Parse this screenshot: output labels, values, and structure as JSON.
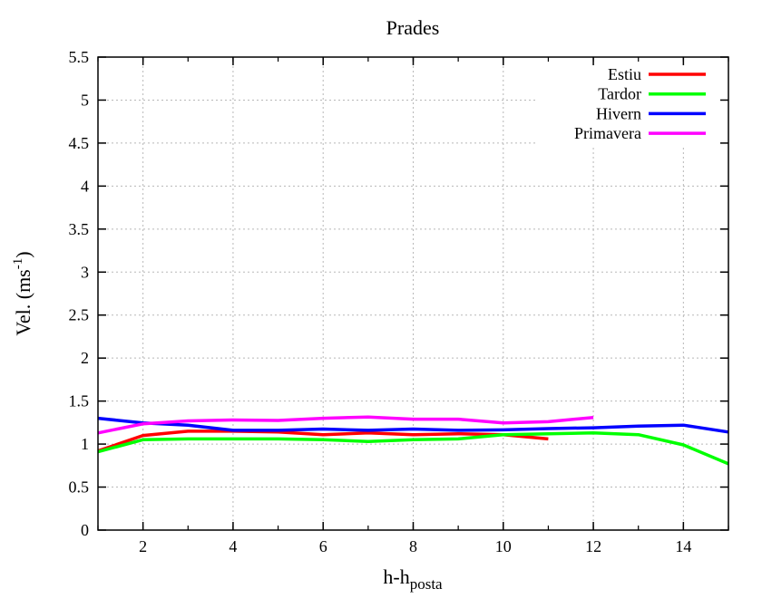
{
  "chart_data": {
    "type": "line",
    "title": "Prades",
    "xlabel": "h-h",
    "xlabel_sub": "posta",
    "ylabel": "Vel. (ms",
    "ylabel_sup": "-1",
    "ylabel_close": ")",
    "xlim": [
      1,
      15
    ],
    "ylim": [
      0,
      5.5
    ],
    "xticks": [
      2,
      4,
      6,
      8,
      10,
      12,
      14
    ],
    "yticks": [
      0,
      0.5,
      1,
      1.5,
      2,
      2.5,
      3,
      3.5,
      4,
      4.5,
      5,
      5.5
    ],
    "grid": true,
    "legend_position": "top-right",
    "series": [
      {
        "name": "Estiu",
        "color": "#ff0000",
        "x": [
          1,
          2,
          3,
          4,
          5,
          6,
          7,
          8,
          9,
          10,
          11
        ],
        "y": [
          0.92,
          1.1,
          1.15,
          1.15,
          1.14,
          1.11,
          1.13,
          1.11,
          1.12,
          1.11,
          1.06
        ]
      },
      {
        "name": "Tardor",
        "color": "#00ff00",
        "x": [
          1,
          2,
          3,
          4,
          5,
          6,
          7,
          8,
          9,
          10,
          11,
          12,
          13,
          14,
          15
        ],
        "y": [
          0.91,
          1.05,
          1.06,
          1.06,
          1.06,
          1.05,
          1.03,
          1.05,
          1.06,
          1.11,
          1.12,
          1.13,
          1.11,
          0.99,
          0.77
        ]
      },
      {
        "name": "Hivern",
        "color": "#0000ff",
        "x": [
          1,
          2,
          3,
          4,
          5,
          6,
          7,
          8,
          9,
          10,
          11,
          12,
          13,
          14,
          15
        ],
        "y": [
          1.3,
          1.245,
          1.22,
          1.16,
          1.16,
          1.175,
          1.16,
          1.175,
          1.16,
          1.165,
          1.18,
          1.19,
          1.21,
          1.22,
          1.14
        ]
      },
      {
        "name": "Primavera",
        "color": "#ff00ff",
        "x": [
          1,
          2,
          3,
          4,
          5,
          6,
          7,
          8,
          9,
          10,
          11,
          12
        ],
        "y": [
          1.13,
          1.235,
          1.27,
          1.28,
          1.275,
          1.3,
          1.315,
          1.29,
          1.29,
          1.245,
          1.26,
          1.31
        ]
      }
    ]
  }
}
